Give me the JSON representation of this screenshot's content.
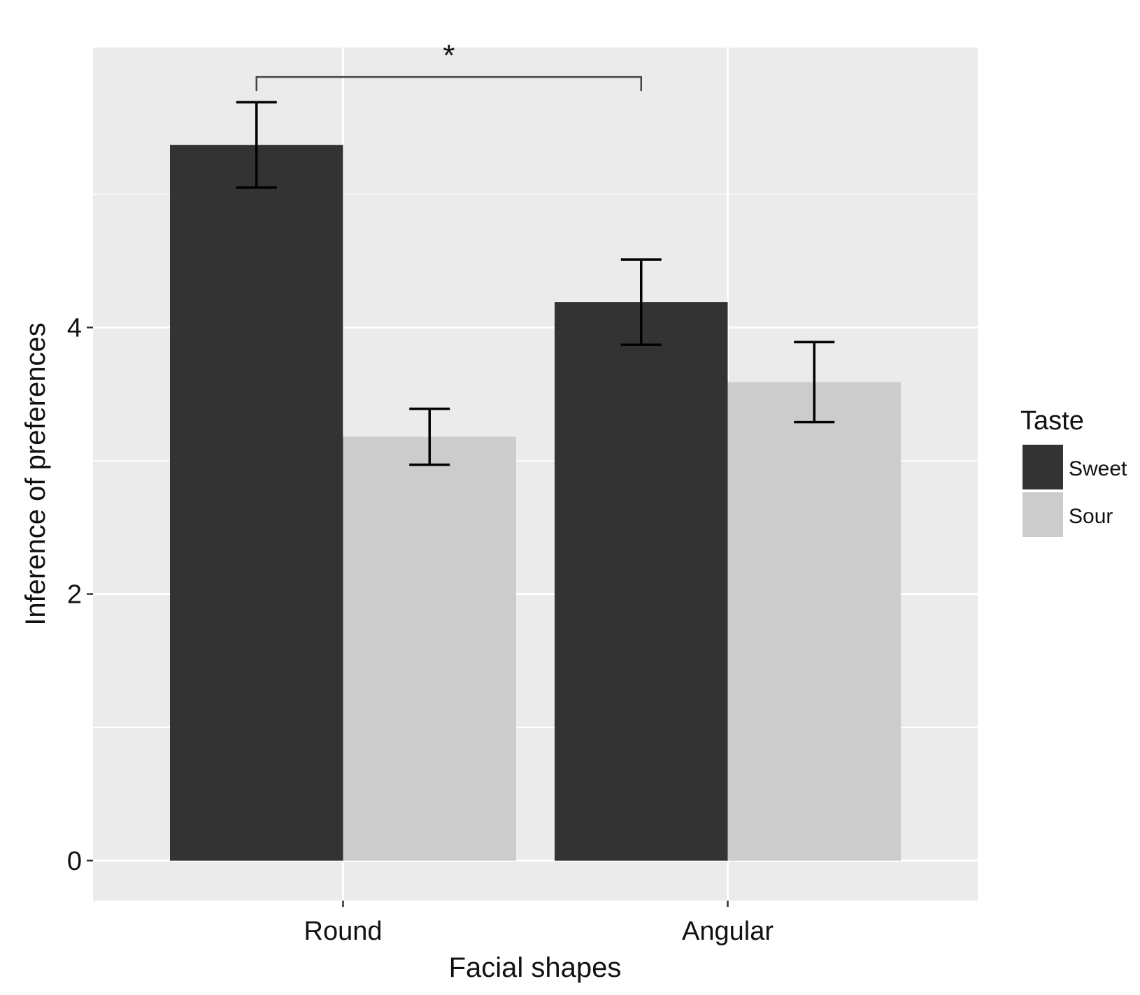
{
  "chart_data": {
    "type": "bar",
    "title": "",
    "xlabel": "Facial shapes",
    "ylabel": "Inference of preferences",
    "categories": [
      "Round",
      "Angular"
    ],
    "series": [
      {
        "name": "Sweet",
        "color": "#333333",
        "values": [
          5.37,
          4.19
        ],
        "errors": [
          0.32,
          0.32
        ]
      },
      {
        "name": "Sour",
        "color": "#cccccc",
        "values": [
          3.18,
          3.59
        ],
        "errors": [
          0.21,
          0.3
        ]
      }
    ],
    "ylim": [
      -0.3,
      6.1
    ],
    "yticks": [
      {
        "value": 0,
        "label": "0"
      },
      {
        "value": 2,
        "label": "2"
      },
      {
        "value": 4,
        "label": "4"
      }
    ],
    "grid": true,
    "background": "#ebebeb",
    "legend": {
      "title": "Taste",
      "position": "right"
    },
    "annotations": [
      {
        "type": "significance-bracket",
        "label": "*",
        "from": "Round/Sweet",
        "to": "Angular/Sweet"
      }
    ]
  }
}
